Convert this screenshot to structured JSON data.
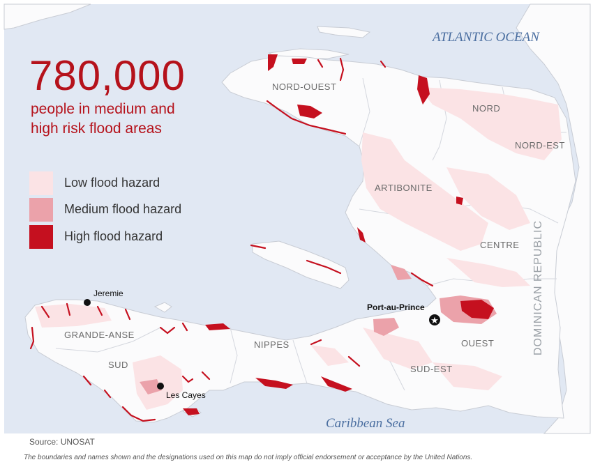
{
  "headline": {
    "figure": "780,000",
    "line1": "people in medium and",
    "line2": "high risk flood areas"
  },
  "legend": [
    {
      "label": "Low flood hazard",
      "color": "#fbe3e5"
    },
    {
      "label": "Medium flood hazard",
      "color": "#eba2aa"
    },
    {
      "label": "High flood hazard",
      "color": "#c5101f"
    }
  ],
  "water_labels": {
    "atlantic": "ATLANTIC OCEAN",
    "caribbean": "Caribbean Sea"
  },
  "neighbor_label": "DOMINICAN REPUBLIC",
  "departments": {
    "nord_ouest": "NORD-OUEST",
    "nord": "NORD",
    "nord_est": "NORD-EST",
    "artibonite": "ARTIBONITE",
    "centre": "CENTRE",
    "ouest": "OUEST",
    "sud_est": "SUD-EST",
    "nippes": "NIPPES",
    "grande_anse": "GRANDE-ANSE",
    "sud": "SUD"
  },
  "cities": {
    "jeremie": "Jeremie",
    "les_cayes": "Les Cayes",
    "capital": "Port-au-Prince"
  },
  "colors": {
    "sea": "#e1e8f3",
    "land": "#fbfbfc",
    "border": "#c8ccd4",
    "low": "#fbe3e5",
    "medium": "#eba2aa",
    "high": "#c5101f",
    "accent": "#b5121b"
  },
  "footer": {
    "source": "Source: UNOSAT",
    "disclaimer": "The boundaries and names shown and the designations used on this map do not imply official endorsement or acceptance by the United Nations."
  }
}
